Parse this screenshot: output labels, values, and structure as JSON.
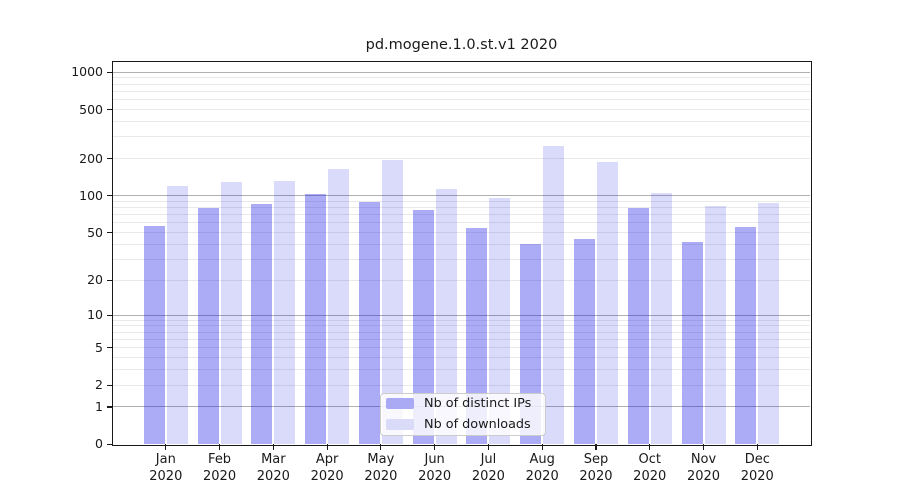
{
  "figure": {
    "background": "#ffffff"
  },
  "chart_data": {
    "type": "bar",
    "title": "pd.mogene.1.0.st.v1 2020",
    "x_months": [
      "Jan",
      "Feb",
      "Mar",
      "Apr",
      "May",
      "Jun",
      "Jul",
      "Aug",
      "Sep",
      "Oct",
      "Nov",
      "Dec"
    ],
    "x_year": "2020",
    "categories": [
      "Jan 2020",
      "Feb 2020",
      "Mar 2020",
      "Apr 2020",
      "May 2020",
      "Jun 2020",
      "Jul 2020",
      "Aug 2020",
      "Sep 2020",
      "Oct 2020",
      "Nov 2020",
      "Dec 2020"
    ],
    "series": [
      {
        "name": "Nb of distinct IPs",
        "color_fill": "rgba(25,25,230,0.36)",
        "color_solid": "#a9a9f4",
        "values": [
          57,
          79,
          86,
          104,
          89,
          76,
          55,
          40,
          44,
          79,
          42,
          56
        ]
      },
      {
        "name": "Nb of downloads",
        "color_fill": "rgba(25,25,230,0.16)",
        "color_solid": "#dadaf9",
        "values": [
          120,
          130,
          132,
          165,
          195,
          113,
          95,
          253,
          188,
          106,
          82,
          87
        ]
      }
    ],
    "yscale": "log1p",
    "y_ticks": [
      0,
      1,
      2,
      5,
      10,
      20,
      50,
      100,
      200,
      500,
      1000
    ],
    "ylim": [
      0,
      1225
    ],
    "grid": true,
    "legend_position": "lower center",
    "colors": {
      "grid_major": "#b0b0b0",
      "grid_minor": "#e9e9e9",
      "axis": "#1a1a1a",
      "text": "#1a1a1a",
      "legend_border": "#cccccc",
      "legend_bg": "rgba(255,255,255,0.8)"
    }
  }
}
